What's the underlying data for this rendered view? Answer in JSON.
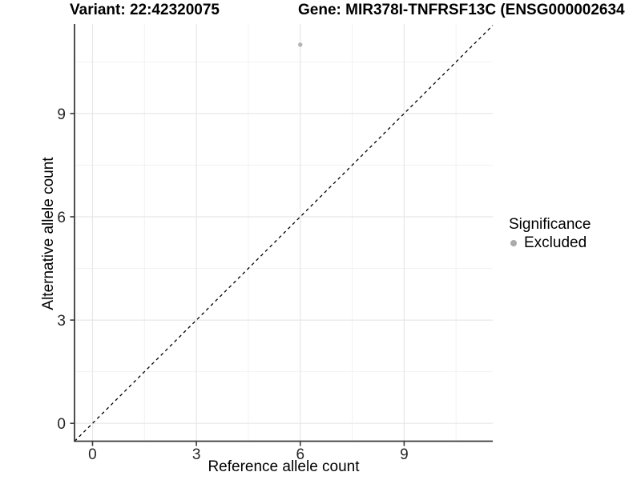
{
  "header": {
    "variant_title": "Variant: 22:42320075",
    "gene_title": "Gene: MIR378I-TNFRSF13C (ENSG000002634"
  },
  "legend": {
    "title": "Significance",
    "items": [
      {
        "label": "Excluded",
        "color": "#aaaaaa"
      }
    ]
  },
  "colors": {
    "point": "#b3b3b3",
    "axis_line": "#3a3a3a",
    "tick_label": "#262626",
    "grid_major": "#e7e7e7",
    "grid_minor": "#f2f2f2",
    "reference_line": "#000000"
  },
  "chart_data": {
    "type": "scatter",
    "xlabel": "Reference allele count",
    "ylabel": "Alternative allele count",
    "xlim": [
      -0.52,
      11.56
    ],
    "ylim": [
      -0.53,
      11.6
    ],
    "xticks": [
      0,
      3,
      6,
      9
    ],
    "yticks": [
      0,
      3,
      6,
      9
    ],
    "xtick_labels": [
      "0",
      "3",
      "6",
      "9"
    ],
    "ytick_labels": [
      "0",
      "3",
      "6",
      "9"
    ],
    "x_minor_ticks": [
      1.5,
      4.5,
      7.5,
      10.5
    ],
    "y_minor_ticks": [
      1.5,
      4.5,
      7.5,
      10.5
    ],
    "grid": true,
    "legend_position": "right",
    "series": [
      {
        "name": "Excluded",
        "color": "#b3b3b3",
        "points": [
          {
            "x": 6,
            "y": 11
          }
        ]
      }
    ],
    "reference_line": {
      "equation": "y = x",
      "style": "dashed"
    }
  }
}
